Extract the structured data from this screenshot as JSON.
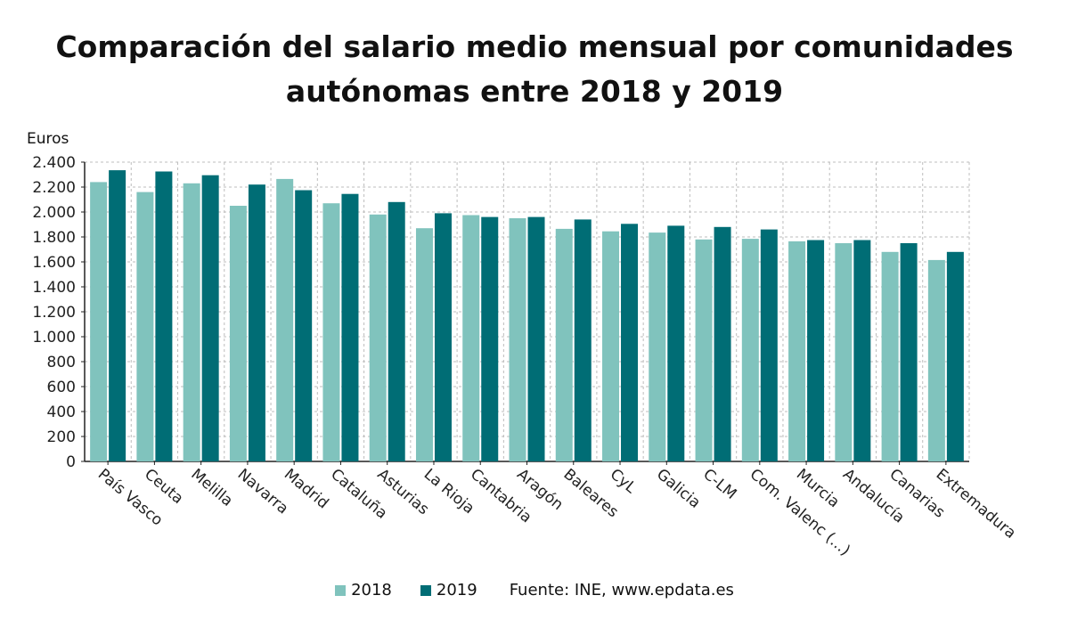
{
  "chart_data": {
    "type": "bar",
    "title": "Comparación del salario medio mensual por comunidades autónomas entre 2018 y 2019",
    "title_lines": [
      "Comparación del salario medio mensual por comunidades",
      "autónomas entre 2018 y 2019"
    ],
    "ylabel": "Euros",
    "xlabel": "",
    "ylim": [
      0,
      2400
    ],
    "yticks": [
      0,
      200,
      400,
      600,
      800,
      1000,
      1200,
      1400,
      1600,
      1800,
      2000,
      2200,
      2400
    ],
    "ytick_labels": [
      "0",
      "200",
      "400",
      "600",
      "800",
      "1.000",
      "1.200",
      "1.400",
      "1.600",
      "1.800",
      "2.000",
      "2.200",
      "2.400"
    ],
    "grid": true,
    "legend_position": "bottom",
    "categories": [
      "País Vasco",
      "Ceuta",
      "Melilla",
      "Navarra",
      "Madrid",
      "Cataluña",
      "Asturias",
      "La Rioja",
      "Cantabria",
      "Aragón",
      "Baleares",
      "CyL",
      "Galicia",
      "C-LM",
      "Com. Valenc (...)",
      "Murcia",
      "Andalucía",
      "Canarias",
      "Extremadura"
    ],
    "series": [
      {
        "name": "2018",
        "color": "#80c3bd",
        "values": [
          2240,
          2160,
          2230,
          2050,
          2265,
          2070,
          1980,
          1870,
          1975,
          1950,
          1865,
          1845,
          1835,
          1780,
          1785,
          1765,
          1750,
          1680,
          1615
        ]
      },
      {
        "name": "2019",
        "color": "#006d75",
        "values": [
          2335,
          2325,
          2295,
          2220,
          2175,
          2145,
          2080,
          1990,
          1960,
          1960,
          1940,
          1905,
          1890,
          1880,
          1860,
          1775,
          1775,
          1750,
          1680
        ]
      }
    ],
    "source": "Fuente: INE, www.epdata.es"
  }
}
